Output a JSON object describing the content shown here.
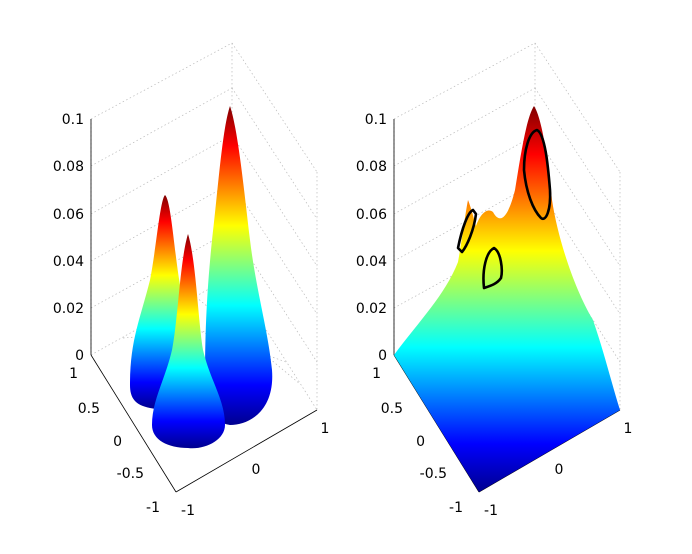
{
  "chart_data": [
    {
      "type": "surface3d",
      "title": "",
      "xlabel": "",
      "ylabel": "",
      "zlabel": "",
      "zlim": [
        0,
        0.1
      ],
      "z_ticks": [
        "0",
        "0.02",
        "0.04",
        "0.06",
        "0.08",
        "0.1"
      ],
      "y_ticks": [
        "1",
        "0.5",
        "0",
        "-0.5",
        "-1"
      ],
      "x_ticks": [
        "-1",
        "0",
        "1"
      ],
      "grid": true,
      "colormap": "jet",
      "peaks": [
        {
          "x": 0.55,
          "y": -0.5,
          "height": 0.1
        },
        {
          "x": -0.55,
          "y": -0.35,
          "height": 0.065
        },
        {
          "x": -0.45,
          "y": 0.4,
          "height": 0.055
        }
      ],
      "contours": false
    },
    {
      "type": "surface3d",
      "title": "",
      "xlabel": "",
      "ylabel": "",
      "zlabel": "",
      "zlim": [
        0,
        0.1
      ],
      "z_ticks": [
        "0",
        "0.02",
        "0.04",
        "0.06",
        "0.08",
        "0.1"
      ],
      "y_ticks": [
        "1",
        "0.5",
        "0",
        "-0.5",
        "-1"
      ],
      "x_ticks": [
        "-1",
        "0",
        "1"
      ],
      "grid": true,
      "colormap": "jet",
      "peaks": [
        {
          "x": 0.55,
          "y": -0.5,
          "height": 0.1
        },
        {
          "x": -0.55,
          "y": -0.35,
          "height": 0.065
        },
        {
          "x": -0.45,
          "y": 0.4,
          "height": 0.055
        }
      ],
      "contours": true,
      "contour_color": "#000000"
    }
  ]
}
